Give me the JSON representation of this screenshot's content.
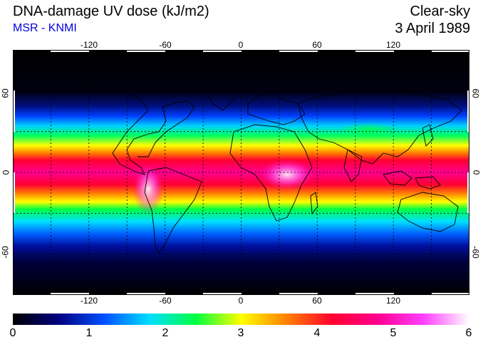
{
  "header": {
    "title": "DNA-damage UV dose (kJ/m2)",
    "source": "MSR - KNMI",
    "condition": "Clear-sky",
    "date": "3 April 1989"
  },
  "map": {
    "projection": "equirectangular",
    "lon_range": [
      -180,
      180
    ],
    "lat_range": [
      -90,
      90
    ],
    "grid_lines": true,
    "lon_ticks": [
      "-120",
      "-60",
      "0",
      "60",
      "120"
    ],
    "lat_ticks": [
      "60",
      "0",
      "-60"
    ],
    "colormap_range": [
      0,
      6
    ]
  },
  "colorbar": {
    "labels": [
      "0",
      "1",
      "2",
      "3",
      "4",
      "5",
      "6"
    ],
    "colors": [
      "#000000",
      "#000080",
      "#0050ff",
      "#00e0ff",
      "#00ff40",
      "#ffff00",
      "#ff8000",
      "#ff0030",
      "#ff0090",
      "#ff40ff",
      "#ffffff"
    ]
  }
}
